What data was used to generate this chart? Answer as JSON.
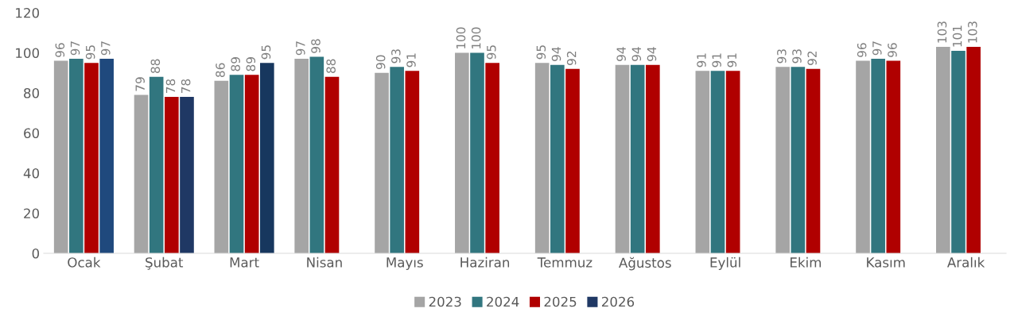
{
  "chart_data": {
    "type": "bar",
    "categories": [
      "Ocak",
      "Şubat",
      "Mart",
      "Nisan",
      "Mayıs",
      "Haziran",
      "Temmuz",
      "Ağustos",
      "Eylül",
      "Ekim",
      "Kasım",
      "Aralık"
    ],
    "series": [
      {
        "name": "2023",
        "color": "#a5a5a5",
        "values": [
          96,
          79,
          86,
          97,
          90,
          100,
          95,
          94,
          91,
          93,
          96,
          103
        ]
      },
      {
        "name": "2024",
        "color": "#31767f",
        "values": [
          97,
          88,
          89,
          98,
          93,
          100,
          94,
          94,
          91,
          93,
          97,
          101
        ]
      },
      {
        "name": "2025",
        "color": "#b00000",
        "values": [
          95,
          78,
          89,
          88,
          91,
          95,
          92,
          94,
          91,
          92,
          96,
          103
        ]
      },
      {
        "name": "2026",
        "color": "#1f3864",
        "colors": [
          "#1f497d",
          "#1f3864",
          "#17375e",
          null,
          null,
          null,
          null,
          null,
          null,
          null,
          null,
          null
        ],
        "values": [
          97,
          78,
          95,
          null,
          null,
          null,
          null,
          null,
          null,
          null,
          null,
          null
        ]
      }
    ],
    "ylim": [
      0,
      120
    ],
    "yticks": [
      0,
      20,
      40,
      60,
      80,
      100,
      120
    ],
    "grid": false,
    "legend": "bottom",
    "data_labels": true
  }
}
